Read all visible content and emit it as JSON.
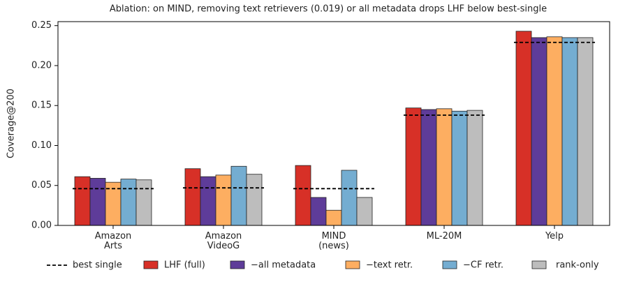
{
  "chart_data": {
    "type": "bar",
    "title": "Ablation: on MIND, removing text retrievers (0.019) or all metadata drops LHF below best-single",
    "y_label": "Coverage@200",
    "categories": [
      "Amazon\nArts",
      "Amazon\nVideoG",
      "MIND\n(news)",
      "ML-20M",
      "Yelp"
    ],
    "series": [
      {
        "name": "LHF (full)",
        "color": "#d73027",
        "values": [
          0.061,
          0.071,
          0.075,
          0.147,
          0.243
        ]
      },
      {
        "name": "−all metadata",
        "color": "#5e3c99",
        "values": [
          0.059,
          0.061,
          0.035,
          0.145,
          0.235
        ]
      },
      {
        "name": "−text retr.",
        "color": "#fdae61",
        "values": [
          0.054,
          0.063,
          0.019,
          0.146,
          0.236
        ]
      },
      {
        "name": "−CF retr.",
        "color": "#74add1",
        "values": [
          0.058,
          0.074,
          0.069,
          0.143,
          0.235
        ]
      },
      {
        "name": "rank-only",
        "color": "#bdbdbd",
        "values": [
          0.057,
          0.064,
          0.035,
          0.144,
          0.235
        ]
      }
    ],
    "reference": {
      "name": "best single",
      "color": "#000000",
      "style": "dashed",
      "values": [
        0.046,
        0.047,
        0.046,
        0.138,
        0.229
      ]
    },
    "ylim": [
      0,
      0.255
    ],
    "yticks": [
      {
        "value": 0,
        "label": "0.00"
      },
      0.05,
      {
        "value": 0.1,
        "label": "0.10"
      },
      0.15,
      {
        "value": 0.2,
        "label": "0.20"
      },
      0.25
    ],
    "legend": "bottom"
  }
}
